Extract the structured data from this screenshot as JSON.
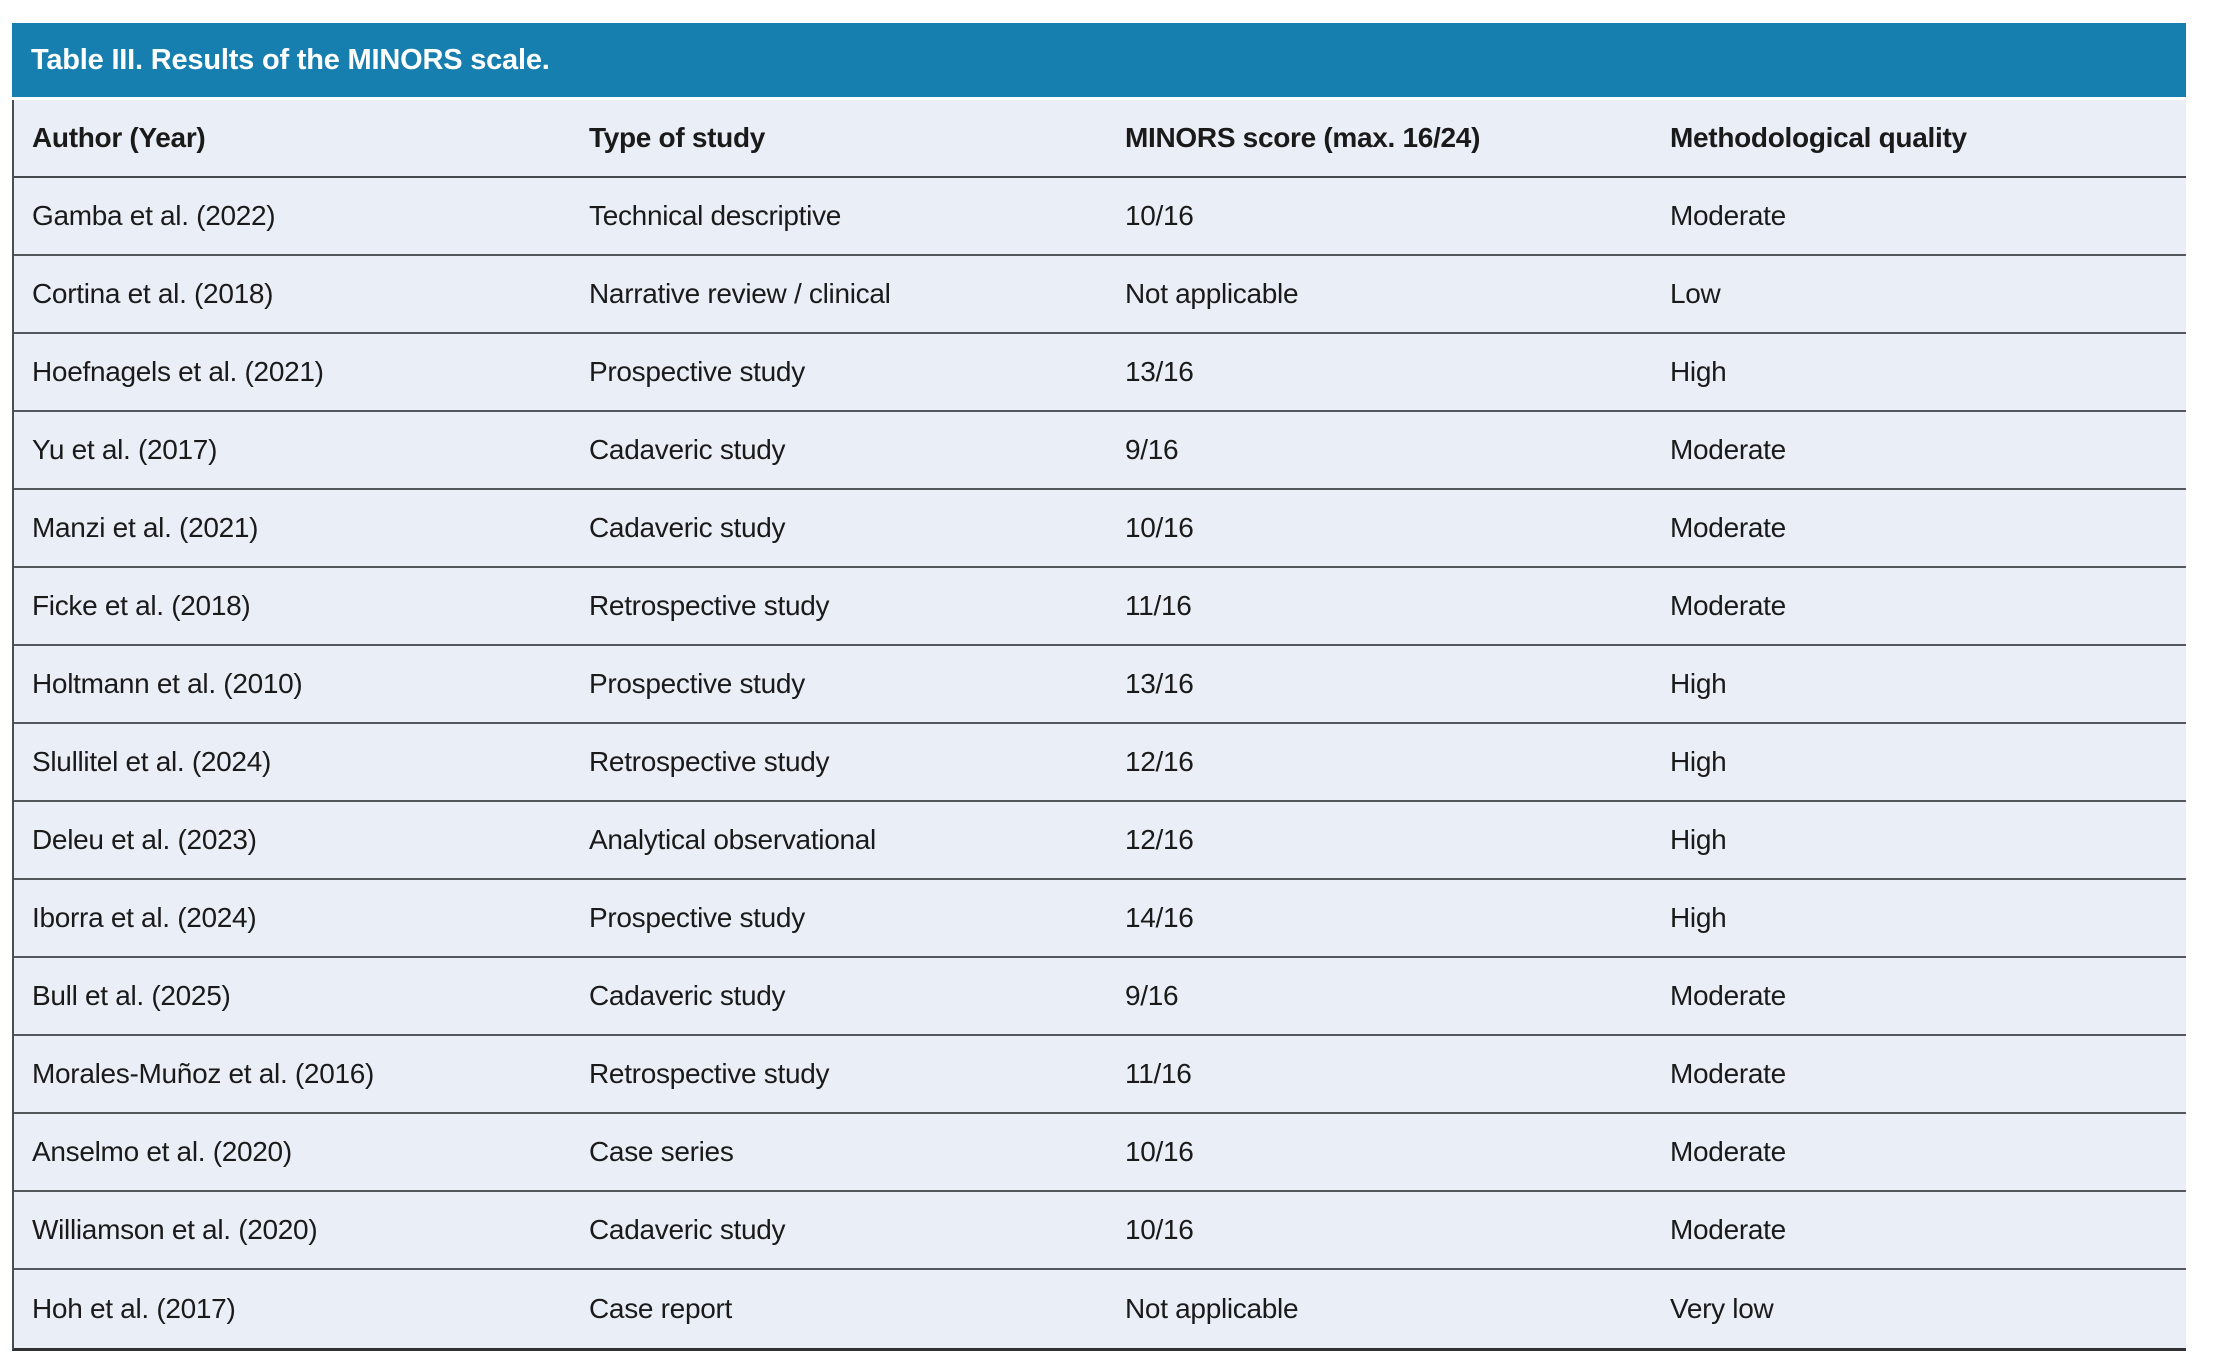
{
  "table": {
    "title": "Table III. Results of the MINORS scale.",
    "columns": [
      "Author (Year)",
      "Type of study",
      "MINORS score (max. 16/24)",
      "Methodological quality"
    ],
    "rows": [
      [
        "Gamba et al. (2022)",
        "Technical descriptive",
        "10/16",
        "Moderate"
      ],
      [
        "Cortina et al. (2018)",
        "Narrative review / clinical",
        "Not applicable",
        "Low"
      ],
      [
        "Hoefnagels et al. (2021)",
        "Prospective study",
        "13/16",
        "High"
      ],
      [
        "Yu et al. (2017)",
        "Cadaveric study",
        "9/16",
        "Moderate"
      ],
      [
        "Manzi et al. (2021)",
        "Cadaveric study",
        "10/16",
        "Moderate"
      ],
      [
        "Ficke et al. (2018)",
        "Retrospective study",
        "11/16",
        "Moderate"
      ],
      [
        "Holtmann et al. (2010)",
        "Prospective study",
        "13/16",
        "High"
      ],
      [
        "Slullitel et al. (2024)",
        "Retrospective study",
        "12/16",
        "High"
      ],
      [
        "Deleu et al. (2023)",
        "Analytical observational",
        "12/16",
        "High"
      ],
      [
        "Iborra et al. (2024)",
        "Prospective study",
        "14/16",
        "High"
      ],
      [
        "Bull et al. (2025)",
        "Cadaveric study",
        "9/16",
        "Moderate"
      ],
      [
        "Morales-Muñoz et al. (2016)",
        "Retrospective study",
        "11/16",
        "Moderate"
      ],
      [
        "Anselmo et al. (2020)",
        "Case series",
        "10/16",
        "Moderate"
      ],
      [
        "Williamson et al. (2020)",
        "Cadaveric study",
        "10/16",
        "Moderate"
      ],
      [
        "Hoh et al. (2017)",
        "Case report",
        "Not applicable",
        "Very low"
      ]
    ]
  },
  "colors": {
    "header_bar": "#167FB0",
    "row_bg": "#EAEEF7",
    "divider": "#54575C",
    "strong_line": "#2F3134",
    "left_line": "#4A4D52",
    "text": "#1A1A1A",
    "title_text": "#FFFFFF"
  }
}
